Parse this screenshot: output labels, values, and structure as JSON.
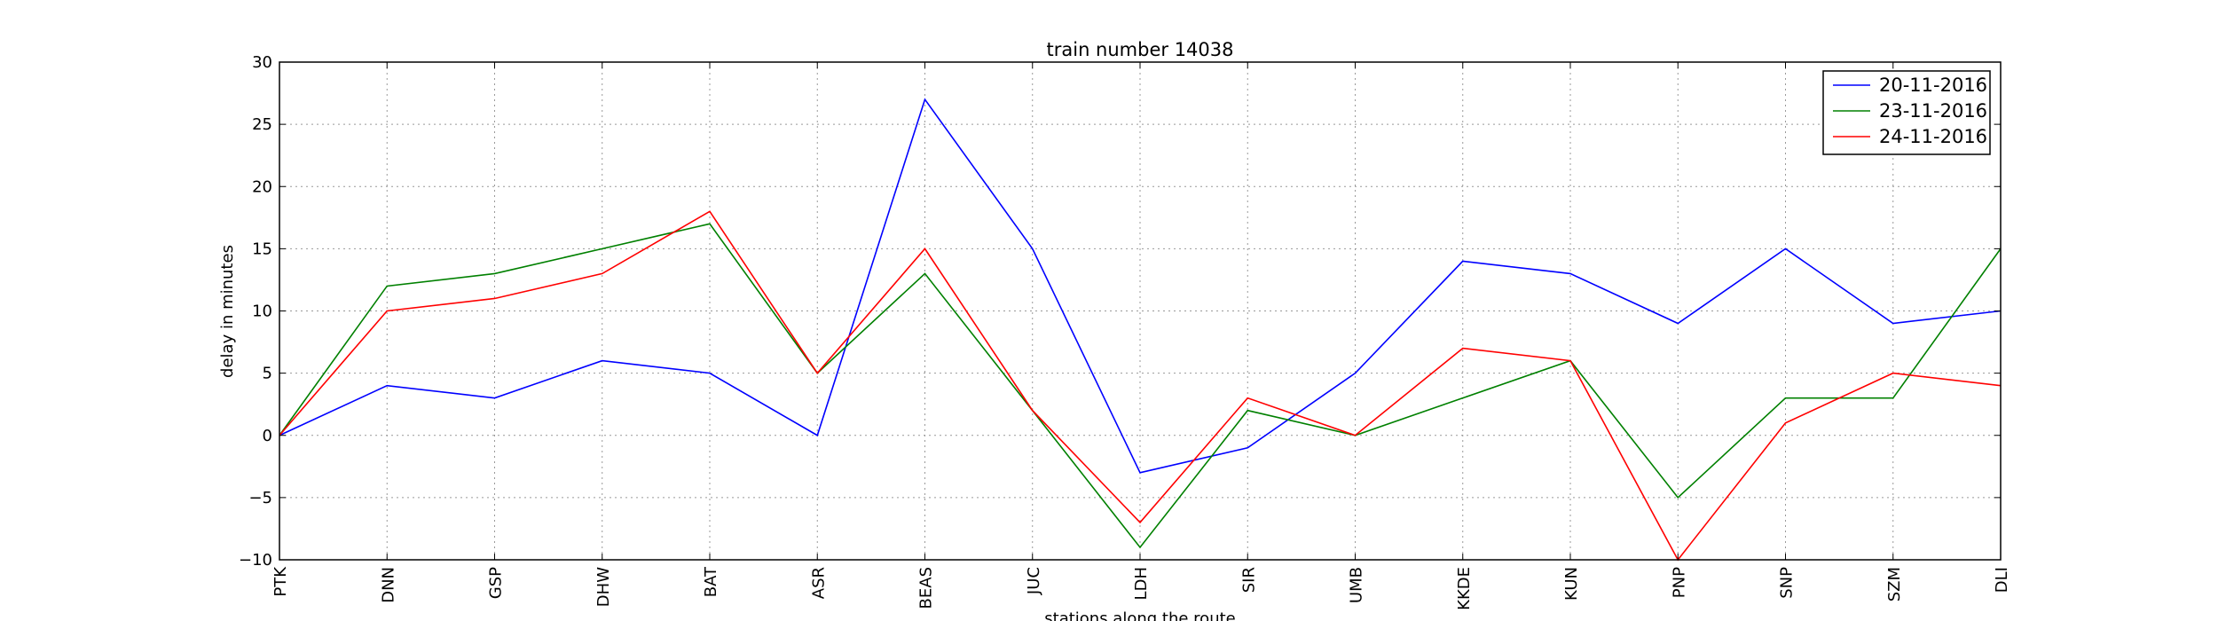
{
  "chart_data": {
    "type": "line",
    "title": "train number 14038",
    "xlabel": "stations along the route",
    "ylabel": "delay in minutes",
    "categories": [
      "PTK",
      "DNN",
      "GSP",
      "DHW",
      "BAT",
      "ASR",
      "BEAS",
      "JUC",
      "LDH",
      "SIR",
      "UMB",
      "KKDE",
      "KUN",
      "PNP",
      "SNP",
      "SZM",
      "DLI"
    ],
    "ylim": [
      -10,
      30
    ],
    "yticks": [
      -10,
      -5,
      0,
      5,
      10,
      15,
      20,
      25,
      30
    ],
    "ytick_labels": [
      "−10",
      "−5",
      "0",
      "5",
      "10",
      "15",
      "20",
      "25",
      "30"
    ],
    "grid": true,
    "legend_position": "top-right",
    "series": [
      {
        "name": "20-11-2016",
        "color": "#0000ff",
        "values": [
          0,
          4,
          3,
          6,
          5,
          0,
          27,
          15,
          -3,
          -1,
          5,
          14,
          13,
          9,
          15,
          9,
          10
        ]
      },
      {
        "name": "23-11-2016",
        "color": "#008000",
        "values": [
          0,
          12,
          13,
          15,
          17,
          5,
          13,
          2,
          -9,
          2,
          0,
          3,
          6,
          -5,
          3,
          3,
          15
        ]
      },
      {
        "name": "24-11-2016",
        "color": "#ff0000",
        "values": [
          0,
          10,
          11,
          13,
          18,
          5,
          15,
          2,
          -7,
          3,
          0,
          7,
          6,
          -10,
          1,
          5,
          4
        ]
      }
    ]
  }
}
